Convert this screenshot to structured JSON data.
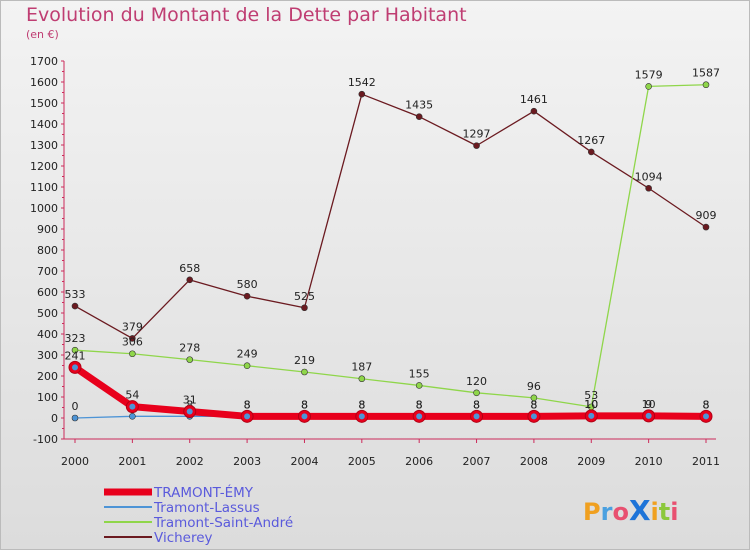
{
  "chart_data": {
    "type": "line",
    "title": "Evolution du Montant de la Dette par Habitant",
    "subtitle": "(en €)",
    "x": [
      "2000",
      "2001",
      "2002",
      "2003",
      "2004",
      "2005",
      "2006",
      "2007",
      "2008",
      "2009",
      "2010",
      "2011"
    ],
    "ylim": [
      -100,
      1700
    ],
    "yticks": [
      -100,
      0,
      100,
      200,
      300,
      400,
      500,
      600,
      700,
      800,
      900,
      1000,
      1100,
      1200,
      1300,
      1400,
      1500,
      1600,
      1700
    ],
    "grid": false,
    "legend_position": "bottom-left",
    "series": [
      {
        "name": "TRAMONT-ÉMY",
        "color": "#e8001c",
        "values": [
          241,
          54,
          31,
          8,
          8,
          8,
          8,
          8,
          8,
          10,
          10,
          8
        ],
        "labels": [
          "241",
          "54",
          "31",
          "8",
          "8",
          "8",
          "8",
          "8",
          "8",
          "10",
          "10",
          "8"
        ]
      },
      {
        "name": "Tramont-Lassus",
        "color": "#4d94d6",
        "values": [
          0,
          8,
          8,
          8,
          8,
          8,
          8,
          8,
          8,
          10,
          9,
          8
        ],
        "labels": [
          "0",
          "8",
          "8",
          "8",
          "8",
          "8",
          "8",
          "8",
          "8",
          "10",
          "9",
          "8"
        ]
      },
      {
        "name": "Tramont-Saint-André",
        "color": "#8fd64a",
        "values": [
          323,
          306,
          278,
          249,
          219,
          187,
          155,
          120,
          96,
          53,
          1579,
          1587
        ],
        "labels": [
          "323",
          "306",
          "278",
          "249",
          "219",
          "187",
          "155",
          "120",
          "96",
          "53",
          "1579",
          "1587"
        ]
      },
      {
        "name": "Vicherey",
        "color": "#6b1a20",
        "values": [
          533,
          379,
          658,
          580,
          525,
          1542,
          1435,
          1297,
          1461,
          1267,
          1094,
          909
        ],
        "labels": [
          "533",
          "379",
          "658",
          "580",
          "525",
          "1542",
          "1435",
          "1297",
          "1461",
          "1267",
          "1094",
          "909"
        ]
      }
    ]
  },
  "logo": {
    "text": "ProXiti"
  }
}
